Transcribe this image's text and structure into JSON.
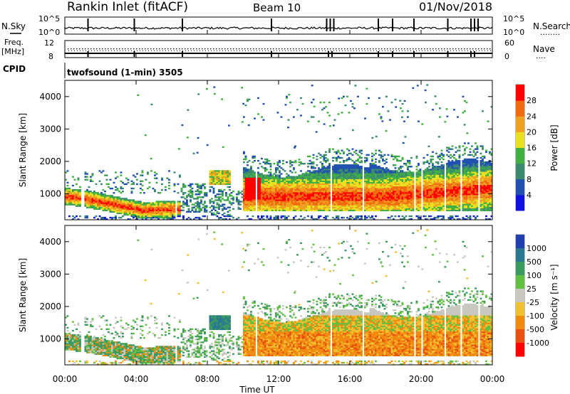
{
  "header": {
    "station": "Rankin Inlet (fitACF)",
    "beam": "Beam 10",
    "date": "01/Nov/2018"
  },
  "strip1": {
    "left_label": "N.Sky",
    "left_ticks": [
      "10^5",
      "10^0"
    ],
    "right_ticks": [
      "10^5",
      "10^0"
    ],
    "right_label": "N.Search",
    "right_dots": "........"
  },
  "strip2": {
    "left_label_1": "Freq.",
    "left_label_2": "[MHz]",
    "left_ticks": [
      "12",
      "8"
    ],
    "right_ticks": [
      "60",
      "0"
    ],
    "right_label": "Nave",
    "right_dots": "...."
  },
  "strip3": {
    "left_label": "CPID",
    "mode": "twofsound (1-min) 3505"
  },
  "x_axis": {
    "ticks": [
      "00:00",
      "04:00",
      "08:00",
      "12:00",
      "16:00",
      "20:00",
      "00:00"
    ],
    "label": "Time UT"
  },
  "colors": {
    "power_scale": [
      "#1010e0",
      "#2050b0",
      "#3a8a70",
      "#40b040",
      "#e8e020",
      "#f0a020",
      "#f06a10",
      "#ff0000"
    ],
    "velocity_scale": [
      "#2040b0",
      "#2a7890",
      "#3a9a60",
      "#60c040",
      "#c8c8c0",
      "#f0c030",
      "#f08a10",
      "#e85010",
      "#ff0000"
    ]
  },
  "chart_data": [
    {
      "type": "heatmap",
      "panel": "power",
      "ylabel": "Slant Range [km]",
      "y_ticks": [
        "1000",
        "2000",
        "3000",
        "4000"
      ],
      "ylim": [
        200,
        4500
      ],
      "xlim": [
        "00:00",
        "24:00"
      ],
      "colorbar": {
        "label": "Power [dB]",
        "ticks": [
          "4",
          "8",
          "12",
          "16",
          "20",
          "24",
          "28"
        ],
        "range": [
          0,
          32
        ]
      }
    },
    {
      "type": "heatmap",
      "panel": "velocity",
      "ylabel": "Slant Range [km]",
      "y_ticks": [
        "1000",
        "2000",
        "3000",
        "4000"
      ],
      "ylim": [
        200,
        4500
      ],
      "xlim": [
        "00:00",
        "24:00"
      ],
      "colorbar": {
        "label": "Velocity [m s⁻¹]",
        "ticks": [
          "1000",
          "500",
          "100",
          "25",
          "-25",
          "-100",
          "-500",
          "-1000"
        ]
      }
    }
  ]
}
